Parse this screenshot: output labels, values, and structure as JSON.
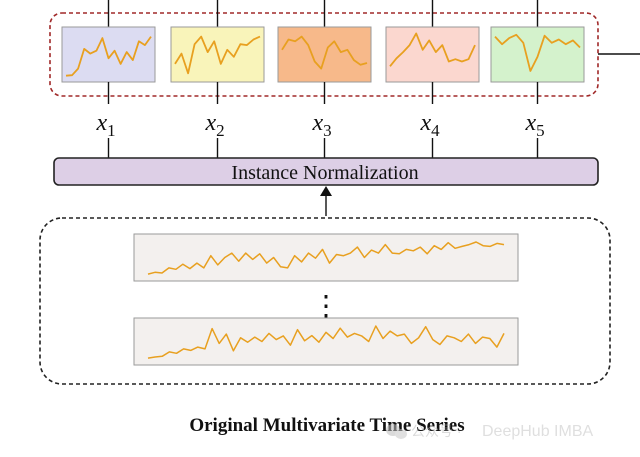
{
  "norm_label": "Instance Normalization",
  "footer_title": "Original Multivariate Time Series",
  "ellipsis": "⋮",
  "watermark": {
    "icon": "wechat-icon",
    "prefix": "公众号 ·",
    "brand": "DeepHub IMBA"
  },
  "channels": [
    {
      "var": "x",
      "sub": "1",
      "fill": "#dcdcf2",
      "series": [
        0.05,
        0.06,
        0.2,
        0.62,
        0.52,
        0.58,
        0.85,
        0.42,
        0.58,
        0.3,
        0.55,
        0.38,
        0.78,
        0.7,
        0.88
      ]
    },
    {
      "var": "x",
      "sub": "2",
      "fill": "#f9f4ba",
      "series": [
        0.3,
        0.52,
        0.1,
        0.72,
        0.88,
        0.55,
        0.78,
        0.3,
        0.6,
        0.45,
        0.72,
        0.7,
        0.82,
        0.88
      ]
    },
    {
      "var": "x",
      "sub": "3",
      "fill": "#f7b98a",
      "series": [
        0.6,
        0.82,
        0.78,
        0.88,
        0.7,
        0.35,
        0.2,
        0.65,
        0.78,
        0.55,
        0.6,
        0.38,
        0.28,
        0.32
      ]
    },
    {
      "var": "x",
      "sub": "4",
      "fill": "#fbd7cf",
      "series": [
        0.25,
        0.42,
        0.55,
        0.7,
        0.95,
        0.6,
        0.8,
        0.55,
        0.7,
        0.35,
        0.4,
        0.35,
        0.4,
        0.7
      ]
    },
    {
      "var": "x",
      "sub": "5",
      "fill": "#d4f2cc",
      "series": [
        0.88,
        0.72,
        0.85,
        0.92,
        0.75,
        0.15,
        0.45,
        0.9,
        0.75,
        0.82,
        0.72,
        0.8,
        0.65
      ]
    }
  ],
  "raw_series": [
    [
      0.05,
      0.1,
      0.08,
      0.22,
      0.18,
      0.32,
      0.2,
      0.35,
      0.22,
      0.55,
      0.3,
      0.5,
      0.62,
      0.4,
      0.62,
      0.45,
      0.6,
      0.35,
      0.5,
      0.25,
      0.22,
      0.55,
      0.38,
      0.62,
      0.48,
      0.72,
      0.35,
      0.58,
      0.55,
      0.62,
      0.78,
      0.5,
      0.7,
      0.62,
      0.85,
      0.62,
      0.6,
      0.72,
      0.68,
      0.78,
      0.6,
      0.82,
      0.72,
      0.9,
      0.75,
      0.8,
      0.85,
      0.92,
      0.82,
      0.8,
      0.88,
      0.85
    ],
    [
      0.05,
      0.08,
      0.1,
      0.22,
      0.18,
      0.3,
      0.26,
      0.35,
      0.3,
      0.85,
      0.45,
      0.7,
      0.25,
      0.6,
      0.48,
      0.62,
      0.5,
      0.72,
      0.55,
      0.65,
      0.4,
      0.82,
      0.52,
      0.66,
      0.48,
      0.75,
      0.58,
      0.86,
      0.62,
      0.72,
      0.65,
      0.5,
      0.92,
      0.58,
      0.78,
      0.65,
      0.7,
      0.45,
      0.6,
      0.9,
      0.55,
      0.42,
      0.65,
      0.6,
      0.5,
      0.7,
      0.45,
      0.62,
      0.58,
      0.35,
      0.72
    ]
  ]
}
